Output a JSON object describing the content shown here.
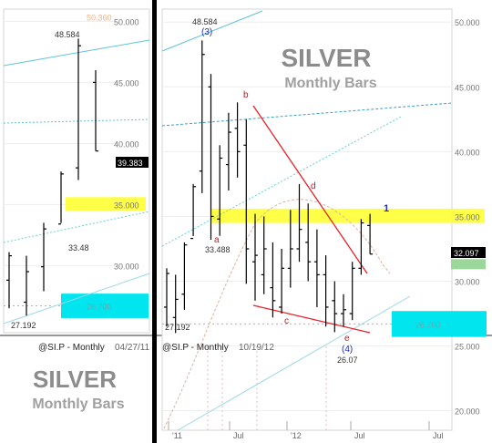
{
  "chart_data": [
    {
      "type": "ohlc",
      "title": "SILVER",
      "subtitle": "Monthly Bars",
      "symbol_label": "@SI.P - Monthly",
      "date_label": "04/27/11",
      "ylim": [
        24.5,
        51.0
      ],
      "y_ticks": [
        30.0,
        35.0,
        40.0,
        45.0,
        50.0
      ],
      "y_tick_labels": [
        "30.000",
        "35.000",
        "40.000",
        "45.000",
        "50.000"
      ],
      "last_price_label": "39.383",
      "price_markers": [
        {
          "value": 50.36,
          "label": "50.360",
          "color": "#f4b183"
        },
        {
          "value": 26.7,
          "label": "26.700",
          "color": "#00e5ee"
        }
      ],
      "annotations": [
        {
          "label": "48.584",
          "value": 48.584
        },
        {
          "label": "33.48",
          "value": 33.48
        },
        {
          "label": "27.192",
          "value": 27.192
        }
      ],
      "bars": [
        {
          "o": 28.8,
          "h": 31.1,
          "l": 26.5,
          "c": 30.8
        },
        {
          "o": 27.0,
          "h": 30.8,
          "l": 25.9,
          "c": 29.5
        },
        {
          "o": 29.9,
          "h": 33.5,
          "l": 27.9,
          "c": 33.0
        },
        {
          "o": 33.4,
          "h": 37.7,
          "l": 33.48,
          "c": 37.5
        },
        {
          "o": 38.0,
          "h": 48.584,
          "l": 37.0,
          "c": 48.0
        },
        {
          "o": 45.0,
          "h": 46.0,
          "l": 39.383,
          "c": 39.383
        }
      ]
    },
    {
      "type": "ohlc",
      "title": "SILVER",
      "subtitle": "Monthly Bars",
      "symbol_label": "@SI.P - Monthly",
      "date_label": "10/19/12",
      "ylim": [
        18.5,
        51.0
      ],
      "y_ticks": [
        20.0,
        25.0,
        30.0,
        35.0,
        40.0,
        45.0,
        50.0
      ],
      "y_tick_labels": [
        "20.000",
        "25.000",
        "30.000",
        "35.000",
        "40.000",
        "45.000",
        "50.000"
      ],
      "x_tick_labels": [
        "'11",
        "Jul",
        "'12",
        "Jul",
        "Jul"
      ],
      "last_price_label": "32.097",
      "price_markers": [
        {
          "value": 31.349,
          "label": "31.349",
          "color": "#9bd69b"
        },
        {
          "value": 26.7,
          "label": "26.700",
          "color": "#00e5ee"
        }
      ],
      "annotations": [
        {
          "label": "48.584",
          "value": 48.584
        },
        {
          "label": "(3)",
          "value": 49.2
        },
        {
          "label": "33.488",
          "value": 33.488
        },
        {
          "label": "27.192",
          "value": 27.192
        },
        {
          "label": "a"
        },
        {
          "label": "b"
        },
        {
          "label": "c"
        },
        {
          "label": "d"
        },
        {
          "label": "e"
        },
        {
          "label": "(4)",
          "value": 26.07
        },
        {
          "label": "26.07",
          "value": 26.07
        },
        {
          "label": "1"
        }
      ],
      "bars": [
        {
          "o": 28.0,
          "h": 31.0,
          "l": 26.5,
          "c": 30.6
        },
        {
          "o": 27.2,
          "h": 30.5,
          "l": 26.0,
          "c": 28.6
        },
        {
          "o": 29.0,
          "h": 33.0,
          "l": 27.8,
          "c": 32.8
        },
        {
          "o": 33.3,
          "h": 37.5,
          "l": 33.488,
          "c": 37.3
        },
        {
          "o": 38.5,
          "h": 48.584,
          "l": 36.8,
          "c": 47.5
        },
        {
          "o": 45.0,
          "h": 46.0,
          "l": 33.2,
          "c": 35.0
        },
        {
          "o": 34.8,
          "h": 40.5,
          "l": 33.5,
          "c": 39.5
        },
        {
          "o": 39.0,
          "h": 43.0,
          "l": 37.0,
          "c": 41.5
        },
        {
          "o": 41.8,
          "h": 43.8,
          "l": 38.0,
          "c": 40.0
        },
        {
          "o": 40.5,
          "h": 42.5,
          "l": 29.8,
          "c": 32.5
        },
        {
          "o": 31.5,
          "h": 35.2,
          "l": 28.5,
          "c": 32.0
        },
        {
          "o": 30.5,
          "h": 35.0,
          "l": 29.0,
          "c": 32.5
        },
        {
          "o": 29.5,
          "h": 33.0,
          "l": 27.2,
          "c": 28.5
        },
        {
          "o": 28.0,
          "h": 32.5,
          "l": 27.5,
          "c": 31.0
        },
        {
          "o": 31.0,
          "h": 35.5,
          "l": 29.5,
          "c": 32.5
        },
        {
          "o": 32.5,
          "h": 37.5,
          "l": 31.5,
          "c": 34.0
        },
        {
          "o": 33.0,
          "h": 36.0,
          "l": 30.0,
          "c": 31.5
        },
        {
          "o": 31.5,
          "h": 34.0,
          "l": 28.0,
          "c": 30.5
        },
        {
          "o": 30.5,
          "h": 32.0,
          "l": 26.5,
          "c": 28.0
        },
        {
          "o": 28.5,
          "h": 30.0,
          "l": 26.07,
          "c": 27.5
        },
        {
          "o": 27.5,
          "h": 29.0,
          "l": 26.5,
          "c": 27.8
        },
        {
          "o": 27.5,
          "h": 31.5,
          "l": 27.0,
          "c": 31.0
        },
        {
          "o": 31.0,
          "h": 34.8,
          "l": 30.5,
          "c": 34.5
        },
        {
          "o": 34.3,
          "h": 35.2,
          "l": 32.097,
          "c": 32.097
        }
      ]
    }
  ]
}
